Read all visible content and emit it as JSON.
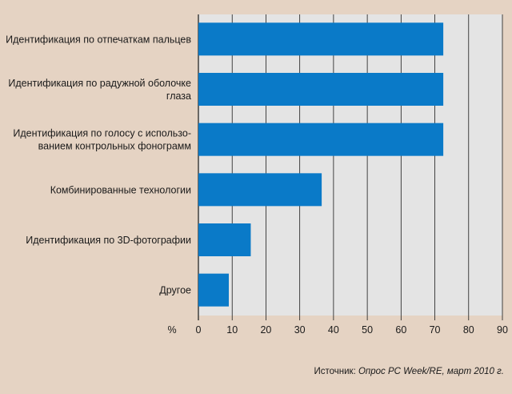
{
  "chart_data": {
    "type": "bar",
    "orientation": "horizontal",
    "categories": [
      [
        "Идентификация по отпечаткам пальцев"
      ],
      [
        "Идентификация по радужной оболочке",
        "глаза"
      ],
      [
        "Идентификация по голосу с использо-",
        "ванием контрольных фонограмм"
      ],
      [
        "Комбинированные технологии"
      ],
      [
        "Идентификация по 3D-фотографии"
      ],
      [
        "Другое"
      ]
    ],
    "values": [
      72.5,
      72.5,
      72.5,
      36.5,
      15.5,
      9
    ],
    "xlim": [
      0,
      90
    ],
    "xticks": [
      0,
      10,
      20,
      30,
      40,
      50,
      60,
      70,
      80,
      90
    ],
    "x_unit_label": "%",
    "grid": "vertical",
    "bar_color": "#0a7ac8",
    "plot_background": "#e4e4e4",
    "gridline_color": "#1a1a1a"
  },
  "source": {
    "prefix": "Источник: ",
    "text": "Опрос PC Week/RE, март 2010 г."
  },
  "colors": {
    "page_background": "#e5d3c3"
  }
}
